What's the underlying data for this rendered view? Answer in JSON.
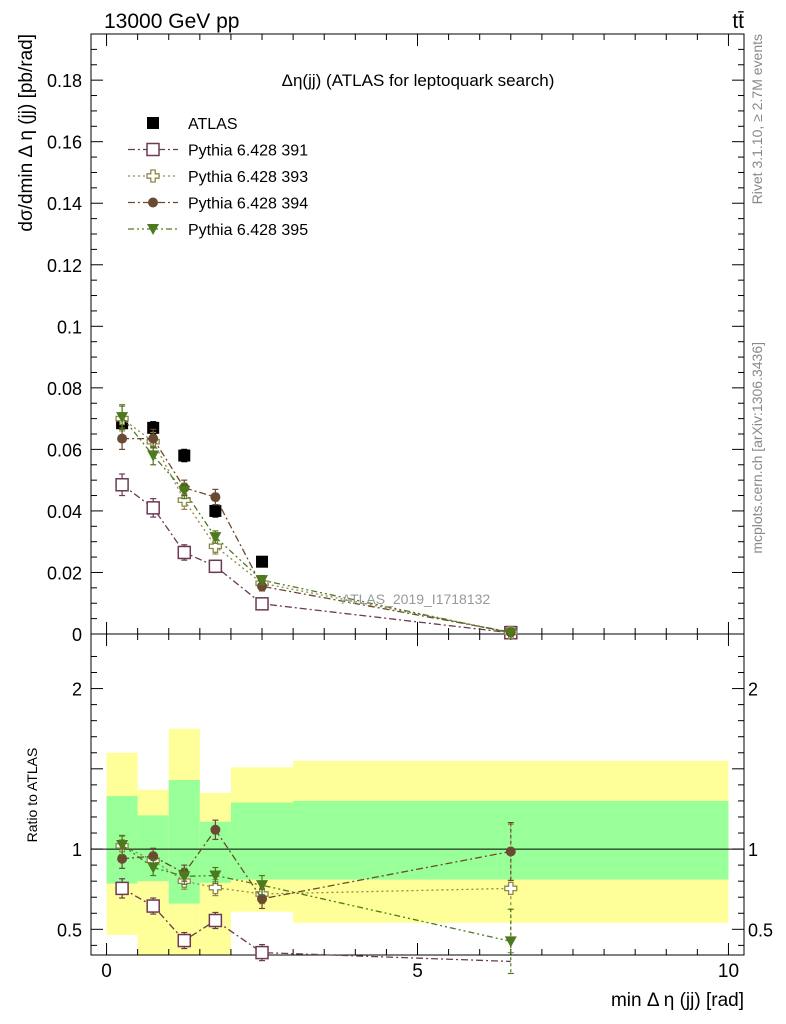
{
  "header": {
    "energy_label": "13000 GeV pp",
    "process_label": "tt̄"
  },
  "side_labels": {
    "rivet": "Rivet 3.1.10, ≥ 2.7M events",
    "source": "mcplots.cern.ch [arXiv:1306.3436]"
  },
  "chart_data": [
    {
      "type": "scatter",
      "panel": "main",
      "title": "Δη(jj) (ATLAS for leptoquark search)",
      "xlabel": "min Δ η (jj) [rad]",
      "ylabel": "dσ/dmin Δ η (jj) [pb/rad]",
      "watermark": "ATLAS_2019_I1718132",
      "xlim": [
        -0.25,
        10.25
      ],
      "ylim": [
        0,
        0.195
      ],
      "x_ticks": [
        0,
        5,
        10
      ],
      "y_ticks": [
        0,
        0.02,
        0.04,
        0.06,
        0.08,
        0.1,
        0.12,
        0.14,
        0.16,
        0.18
      ],
      "y_tick_labels": [
        "0",
        "0.02",
        "0.04",
        "0.06",
        "0.08",
        "0.1",
        "0.12",
        "0.14",
        "0.16",
        "0.18"
      ],
      "legend_position": "top-left",
      "x": [
        0.25,
        0.75,
        1.25,
        1.75,
        2.5,
        6.5
      ],
      "series": [
        {
          "name": "ATLAS",
          "color": "#000000",
          "marker": "square-filled",
          "line": "none",
          "values": [
            0.0685,
            0.067,
            0.058,
            0.04,
            0.0235,
            0.0007
          ],
          "errors": [
            0.002,
            0.002,
            0.002,
            0.002,
            0.0015,
            0.0002
          ]
        },
        {
          "name": "Pythia 6.428 391",
          "color": "#6b3a53",
          "marker": "square-open",
          "line": "dashdot",
          "values": [
            0.0485,
            0.041,
            0.0265,
            0.022,
            0.0098,
            0.0004
          ],
          "errors": [
            0.0035,
            0.003,
            0.0025,
            0.002,
            0.0012,
            0.0001
          ]
        },
        {
          "name": "Pythia 6.428 393",
          "color": "#8c8a4a",
          "marker": "cross-open",
          "line": "dot",
          "values": [
            0.07,
            0.0625,
            0.0435,
            0.0285,
            0.0165,
            0.0005
          ],
          "errors": [
            0.004,
            0.003,
            0.003,
            0.0025,
            0.0015,
            0.0001
          ]
        },
        {
          "name": "Pythia 6.428 394",
          "color": "#6b4a32",
          "marker": "circle-filled",
          "line": "dashdot",
          "values": [
            0.0635,
            0.0635,
            0.0475,
            0.0445,
            0.0155,
            0.0006
          ],
          "errors": [
            0.0035,
            0.003,
            0.0025,
            0.0025,
            0.0015,
            0.0001
          ]
        },
        {
          "name": "Pythia 6.428 395",
          "color": "#4d7a1e",
          "marker": "triangle-down-filled",
          "line": "dashdotdot",
          "values": [
            0.0705,
            0.058,
            0.0465,
            0.0315,
            0.0175,
            0.0003
          ],
          "errors": [
            0.004,
            0.003,
            0.0025,
            0.002,
            0.0015,
            0.0001
          ]
        }
      ]
    },
    {
      "type": "scatter",
      "panel": "ratio",
      "ylabel": "Ratio to ATLAS",
      "xlabel": "min Δ η (jj) [rad]",
      "xlim": [
        -0.25,
        10.25
      ],
      "ylim": [
        0.34,
        2.34
      ],
      "x_ticks": [
        0,
        5,
        10
      ],
      "y_ticks": [
        0.5,
        1,
        2
      ],
      "y_tick_labels": [
        "0.5",
        "1",
        "2"
      ],
      "reference_line": 1,
      "bands": {
        "x_edges": [
          0,
          0.5,
          1,
          1.5,
          2,
          3,
          10
        ],
        "outer_color": "#ffff99",
        "inner_color": "#99ff99",
        "outer_low": [
          0.465,
          0.34,
          0.34,
          0.34,
          0.61,
          0.54
        ],
        "outer_high": [
          1.6,
          1.37,
          1.75,
          1.35,
          1.51,
          1.55
        ],
        "inner_low": [
          0.785,
          0.8,
          0.66,
          0.79,
          0.81,
          0.81
        ],
        "inner_high": [
          1.33,
          1.21,
          1.43,
          1.17,
          1.29,
          1.3
        ]
      },
      "x": [
        0.25,
        0.75,
        1.25,
        1.75,
        2.5,
        6.5
      ],
      "series": [
        {
          "name": "Pythia 6.428 391",
          "color": "#6b3a53",
          "marker": "square-open",
          "line": "dashdot",
          "values": [
            0.755,
            0.645,
            0.43,
            0.555,
            0.355,
            0.3
          ],
          "errors": [
            0.06,
            0.05,
            0.05,
            0.05,
            0.05,
            0.0
          ]
        },
        {
          "name": "Pythia 6.428 393",
          "color": "#8c8a4a",
          "marker": "cross-open",
          "line": "dot",
          "values": [
            1.02,
            0.93,
            0.8,
            0.76,
            0.72,
            0.755
          ],
          "errors": [
            0.06,
            0.05,
            0.05,
            0.05,
            0.06,
            0.4
          ]
        },
        {
          "name": "Pythia 6.428 394",
          "color": "#6b4a32",
          "marker": "circle-filled",
          "line": "dashdot",
          "values": [
            0.94,
            0.955,
            0.85,
            1.12,
            0.69,
            0.985
          ],
          "errors": [
            0.06,
            0.05,
            0.05,
            0.06,
            0.06,
            0.18
          ]
        },
        {
          "name": "Pythia 6.428 395",
          "color": "#4d7a1e",
          "marker": "triangle-down-filled",
          "line": "dashdotdot",
          "values": [
            1.025,
            0.885,
            0.83,
            0.835,
            0.775,
            0.425
          ],
          "errors": [
            0.06,
            0.05,
            0.05,
            0.05,
            0.06,
            0.2
          ]
        }
      ]
    }
  ]
}
